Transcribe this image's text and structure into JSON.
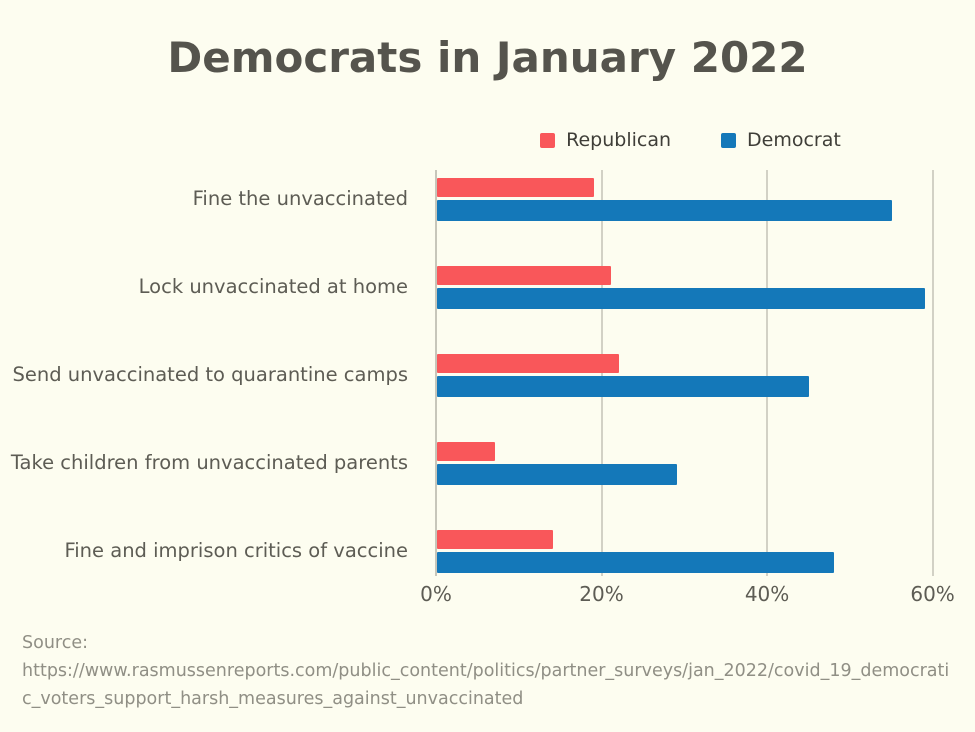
{
  "title": "Democrats in January 2022",
  "chart_data": {
    "type": "bar",
    "orientation": "horizontal",
    "title": "Democrats in January 2022",
    "categories": [
      "Fine the unvaccinated",
      "Lock unvaccinated at home",
      "Send unvaccinated to quarantine camps",
      "Take children from unvaccinated parents",
      "Fine and imprison critics of vaccine"
    ],
    "series": [
      {
        "name": "Republican",
        "color": "#F9575A",
        "values": [
          19,
          21,
          22,
          7,
          14
        ]
      },
      {
        "name": "Democrat",
        "color": "#1478B9",
        "values": [
          55,
          59,
          45,
          29,
          48
        ]
      }
    ],
    "x_ticks": [
      "0%",
      "20%",
      "40%",
      "60%"
    ],
    "x_tick_values": [
      0,
      20,
      40,
      60
    ],
    "xlim": [
      0,
      61.5
    ],
    "grid": true,
    "legend_position": "top",
    "xlabel": "",
    "ylabel": ""
  },
  "source": {
    "label": "Source:",
    "url": "https://www.rasmussenreports.com/public_content/politics/partner_surveys/jan_2022/covid_19_democratic_voters_support_harsh_measures_against_unvaccinated"
  },
  "colors": {
    "background": "#FDFDF0",
    "title_text": "#55544D",
    "category_text": "#5D5C54",
    "legend_text": "#3F3E38",
    "gridline": "#D2D1C5",
    "source_text": "#908F85",
    "republican": "#F9575A",
    "democrat": "#1478B9"
  }
}
